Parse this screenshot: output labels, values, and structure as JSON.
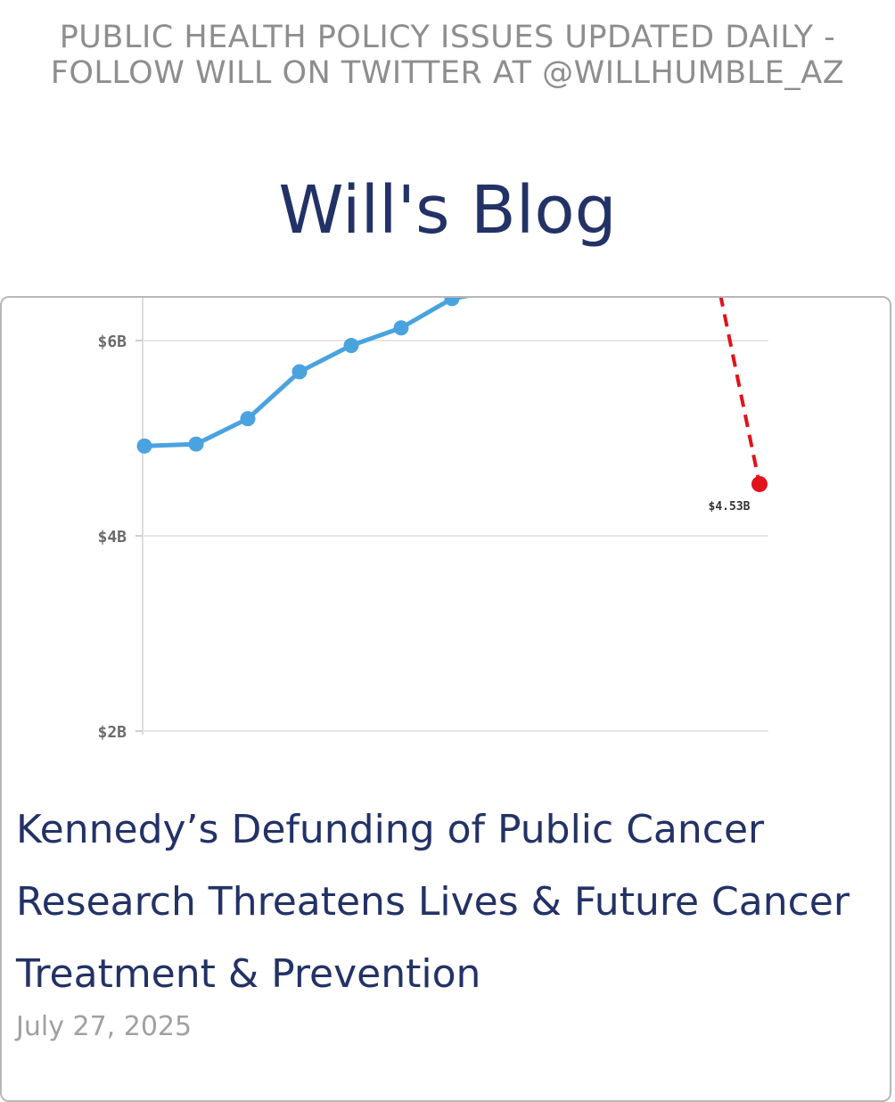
{
  "header": {
    "tagline": "PUBLIC HEALTH POLICY ISSUES UPDATED DAILY - FOLLOW WILL ON TWITTER AT @WILLHUMBLE_AZ",
    "site_title": "Will's Blog"
  },
  "post": {
    "title": "Kennedy’s Defunding of Public Cancer Research Threatens Lives & Future Cancer Treatment & Prevention",
    "date": "July 27, 2025"
  },
  "colors": {
    "title_navy": "#233266",
    "line_blue": "#4aa3df",
    "drop_red": "#e0131b",
    "grid": "#e6e6e6"
  },
  "chart_data": {
    "type": "line",
    "yticks": [
      "$2B",
      "$4B",
      "$6B"
    ],
    "ytick_values": [
      2,
      4,
      6
    ],
    "ylim": [
      2,
      6.45
    ],
    "grid": true,
    "series": [
      {
        "style": "solid",
        "color": "#4aa3df",
        "values": [
          4.92,
          4.94,
          5.2,
          5.68,
          5.95,
          6.13,
          6.43
        ]
      },
      {
        "style": "dashed",
        "color": "#e0131b",
        "from_value": 6.45,
        "to_value": 4.53,
        "end_label": "$4.53B"
      }
    ]
  }
}
